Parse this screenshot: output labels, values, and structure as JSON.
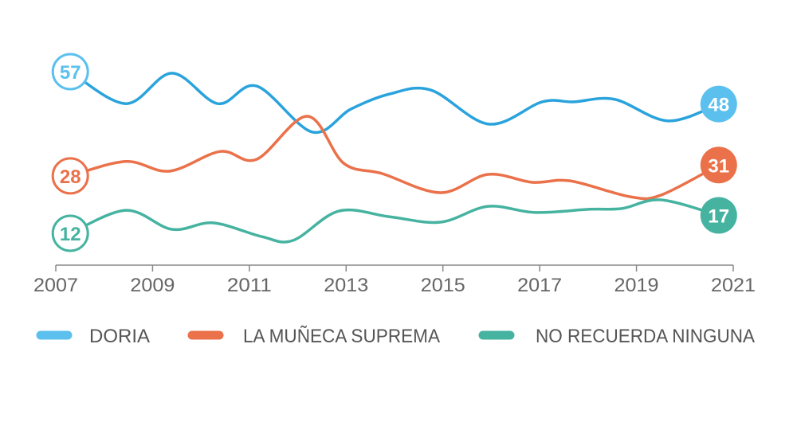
{
  "chart_data": {
    "type": "line",
    "title": "",
    "xlabel": "",
    "ylabel": "",
    "xlim": [
      2007,
      2021
    ],
    "x_ticks": [
      "2007",
      "2009",
      "2011",
      "2013",
      "2015",
      "2017",
      "2019",
      "2021"
    ],
    "grid": false,
    "legend_position": "bottom",
    "series": [
      {
        "name": "DORIA",
        "color": "#2aa3dc",
        "label_color": "#5bc0ee",
        "start_label": "57",
        "end_label": "48",
        "points": [
          [
            2007.3,
            57
          ],
          [
            2008.45,
            48.1
          ],
          [
            2009.4,
            56.6
          ],
          [
            2010.35,
            48.1
          ],
          [
            2011.15,
            53
          ],
          [
            2012.3,
            40.2
          ],
          [
            2013.1,
            46.6
          ],
          [
            2013.9,
            50.8
          ],
          [
            2014.75,
            51.9
          ],
          [
            2015.95,
            42.4
          ],
          [
            2017.05,
            48.6
          ],
          [
            2017.7,
            48.6
          ],
          [
            2018.55,
            49.3
          ],
          [
            2019.65,
            43.3
          ],
          [
            2020.7,
            48
          ]
        ]
      },
      {
        "name": "LA MUÑECA SUPREMA",
        "color": "#ea7149",
        "label_color": "#ea7149",
        "start_label": "28",
        "end_label": "31",
        "points": [
          [
            2007.3,
            28
          ],
          [
            2008.45,
            32
          ],
          [
            2009.35,
            29.3
          ],
          [
            2010.4,
            34.8
          ],
          [
            2011.15,
            32.6
          ],
          [
            2012.2,
            44.6
          ],
          [
            2012.95,
            31.5
          ],
          [
            2013.75,
            28.6
          ],
          [
            2014.95,
            23.3
          ],
          [
            2015.93,
            28.4
          ],
          [
            2016.85,
            26.2
          ],
          [
            2017.63,
            26.6
          ],
          [
            2018.86,
            22.2
          ],
          [
            2019.5,
            22.6
          ],
          [
            2020.7,
            31
          ]
        ]
      },
      {
        "name": "NO RECUERDA NINGUNA",
        "color": "#45b3a0",
        "label_color": "#45b3a0",
        "start_label": "12",
        "end_label": "17",
        "points": [
          [
            2007.3,
            12
          ],
          [
            2008.45,
            18.4
          ],
          [
            2009.4,
            13.1
          ],
          [
            2010.25,
            14.9
          ],
          [
            2011.25,
            11.1
          ],
          [
            2011.9,
            10
          ],
          [
            2012.85,
            18.2
          ],
          [
            2013.9,
            16.6
          ],
          [
            2014.95,
            15.1
          ],
          [
            2015.93,
            19.5
          ],
          [
            2016.9,
            17.8
          ],
          [
            2018.04,
            18.7
          ],
          [
            2018.7,
            18.9
          ],
          [
            2019.5,
            21.3
          ],
          [
            2020.7,
            17
          ]
        ]
      }
    ]
  }
}
